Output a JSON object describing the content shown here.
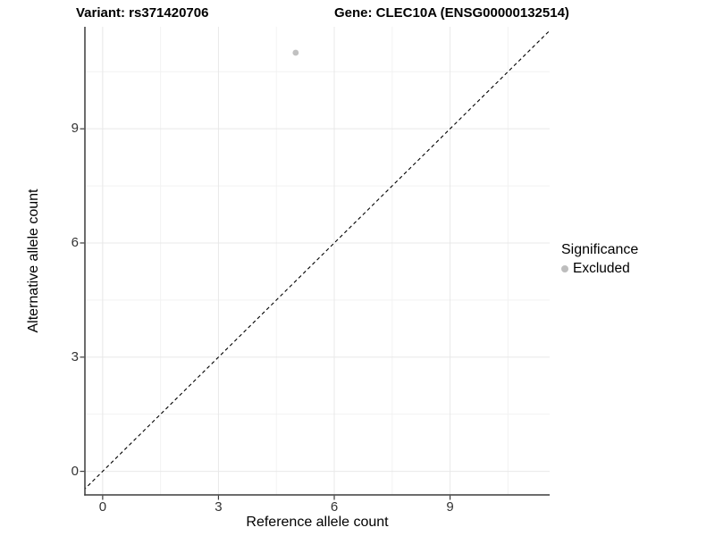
{
  "chart_data": {
    "type": "scatter",
    "title_left": "Variant: rs371420706",
    "title_right": "Gene: CLEC10A (ENSG00000132514)",
    "xlabel": "Reference allele count",
    "ylabel": "Alternative allele count",
    "x_ticks": [
      0,
      3,
      6,
      9
    ],
    "y_ticks": [
      0,
      3,
      6,
      9
    ],
    "x_minor_ticks": [
      1.5,
      4.5,
      7.5,
      10.5
    ],
    "y_minor_ticks": [
      1.5,
      4.5,
      7.5,
      10.5
    ],
    "xlim": [
      -0.46,
      11.58
    ],
    "ylim": [
      -0.62,
      11.68
    ],
    "points": [
      {
        "x": 5,
        "y": 11,
        "group": "Excluded"
      }
    ],
    "reference_line": {
      "kind": "identity",
      "style": "dashed",
      "color": "#000000"
    },
    "legend": {
      "position": "right",
      "title": "Significance",
      "entries": [
        {
          "label": "Excluded",
          "color": "#bdbdbd"
        }
      ]
    },
    "grid": "major+minor",
    "colors": {
      "point": "#c1c1c1",
      "grid_major": "#e8e8e8",
      "grid_minor": "#f2f2f2",
      "axis_line": "#3c3c3c",
      "tick_text": "#333333",
      "background": "#ffffff"
    }
  }
}
